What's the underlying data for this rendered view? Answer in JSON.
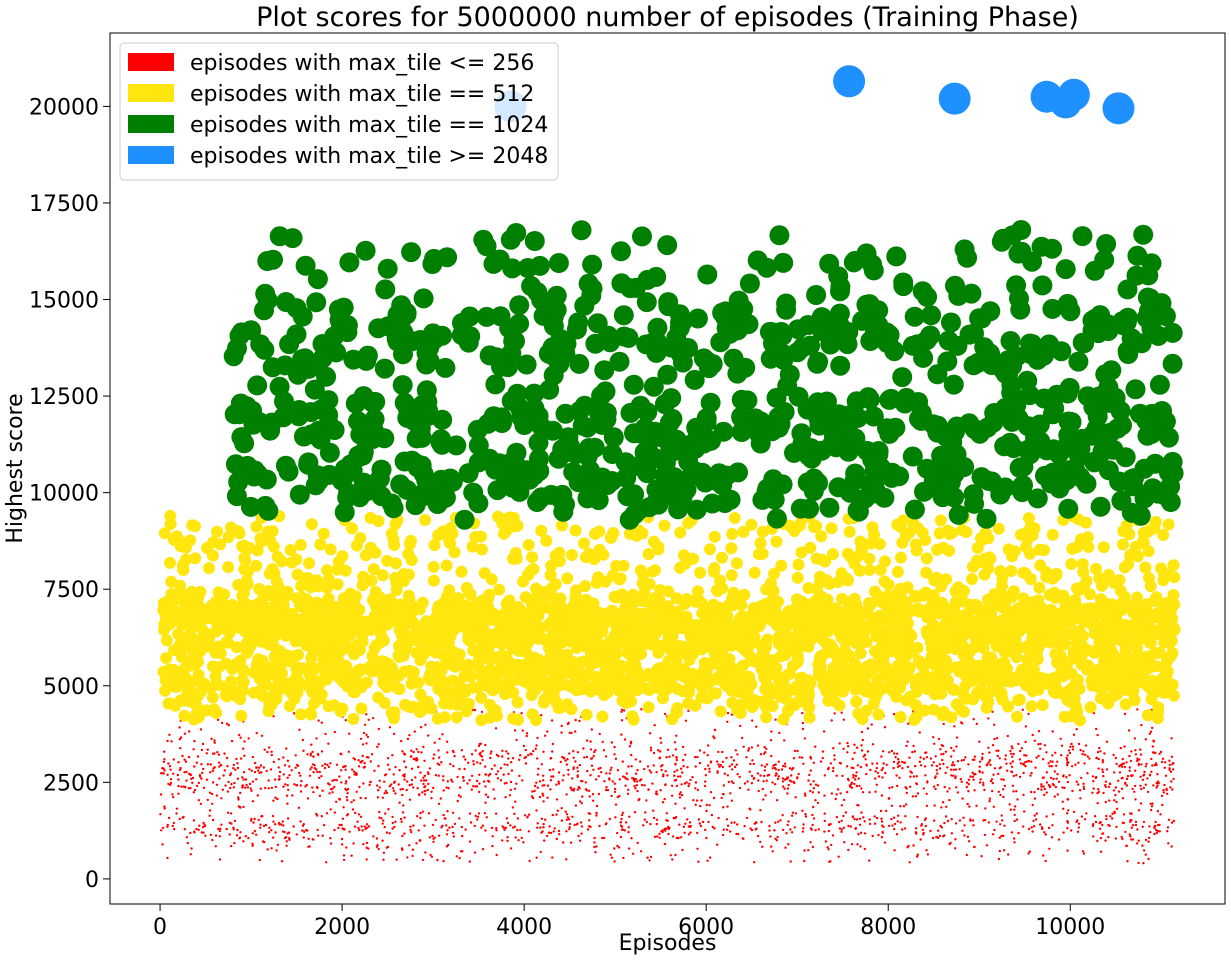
{
  "chart_data": {
    "type": "scatter",
    "title": "Plot scores for 5000000 number of episodes (Training Phase)",
    "xlabel": "Episodes",
    "ylabel": "Highest score",
    "xlim": [
      -550,
      11700
    ],
    "ylim": [
      -650,
      21900
    ],
    "xticks": [
      0,
      2000,
      4000,
      6000,
      8000,
      10000
    ],
    "yticks": [
      0,
      2500,
      5000,
      7500,
      10000,
      12500,
      15000,
      17500,
      20000
    ],
    "grid": false,
    "legend_position": "top-left",
    "legend": [
      {
        "label": "episodes with max_tile <= 256",
        "color": "#ff0000"
      },
      {
        "label": "episodes with max_tile == 512",
        "color": "#ffe60f"
      },
      {
        "label": "episodes with max_tile == 1024",
        "color": "#008000"
      },
      {
        "label": "episodes with max_tile >= 2048",
        "color": "#1e90ff"
      }
    ],
    "series": [
      {
        "name": "episodes with max_tile <= 256",
        "color": "#ff0000",
        "x_range": [
          0,
          11150
        ],
        "score_min": 400,
        "score_max": 4400,
        "dense_bands": [
          1350,
          2450,
          3050
        ],
        "count": 2600
      },
      {
        "name": "episodes with max_tile == 512",
        "color": "#ffe60f",
        "x_range": [
          30,
          11150
        ],
        "score_min": 4100,
        "score_max": 9400,
        "dense_bands": [
          5200,
          6300,
          6900
        ],
        "count": 3200
      },
      {
        "name": "episodes with max_tile == 1024",
        "color": "#008000",
        "x_range": [
          800,
          11150
        ],
        "score_min": 9300,
        "score_max": 16800,
        "dense_bands": [
          10300,
          11800,
          14000
        ],
        "count": 900
      },
      {
        "name": "episodes with max_tile >= 2048",
        "color": "#1e90ff",
        "points": [
          {
            "x": 3850,
            "y": 20000
          },
          {
            "x": 7570,
            "y": 20650
          },
          {
            "x": 8730,
            "y": 20200
          },
          {
            "x": 9740,
            "y": 20250
          },
          {
            "x": 9950,
            "y": 20100
          },
          {
            "x": 10040,
            "y": 20300
          },
          {
            "x": 10530,
            "y": 19950
          }
        ]
      }
    ]
  }
}
